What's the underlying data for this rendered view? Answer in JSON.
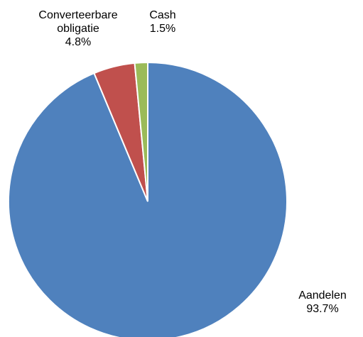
{
  "chart_data": {
    "type": "pie",
    "title": "",
    "start_angle_deg": 90,
    "direction": "clockwise",
    "legend": "none",
    "slices": [
      {
        "label": "Aandelen",
        "label_lines": [
          "Aandelen"
        ],
        "value": 93.7,
        "value_label": "93.7%",
        "color": "#4F81BD"
      },
      {
        "label": "Converteerbare obligatie",
        "label_lines": [
          "Converteerbare",
          "obligatie"
        ],
        "value": 4.8,
        "value_label": "4.8%",
        "color": "#C0504D"
      },
      {
        "label": "Cash",
        "label_lines": [
          "Cash"
        ],
        "value": 1.5,
        "value_label": "1.5%",
        "color": "#9BBB59"
      }
    ]
  }
}
